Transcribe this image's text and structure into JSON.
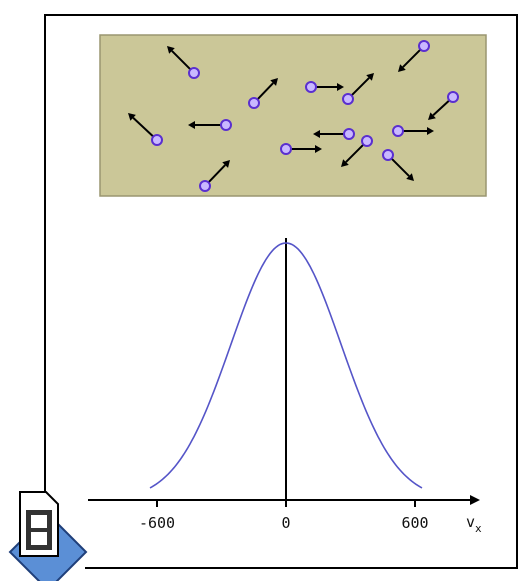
{
  "axis": {
    "ticks": [
      "-600",
      "0",
      "600"
    ],
    "label": "v",
    "label_subscript": "x"
  }
}
